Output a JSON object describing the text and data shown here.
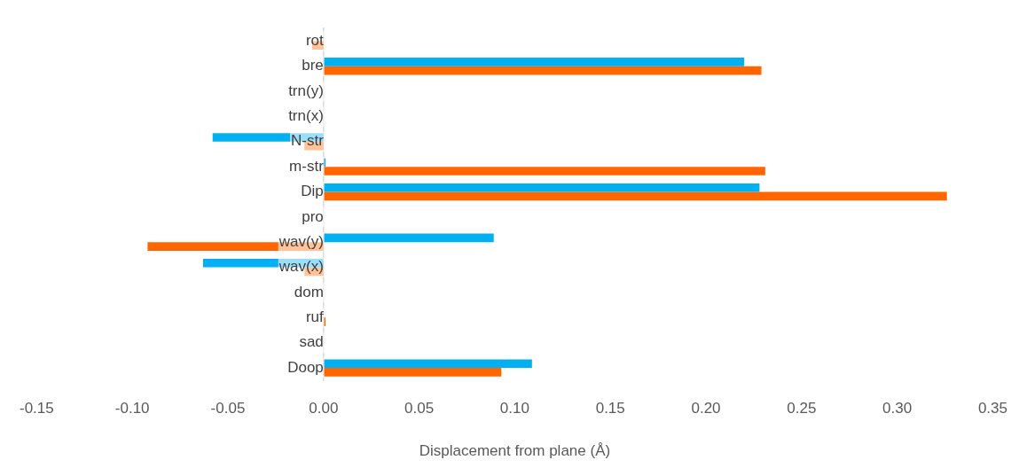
{
  "chart_data": {
    "type": "bar",
    "orientation": "horizontal",
    "xlabel": "Displacement from plane (Å)",
    "categories": [
      "rot",
      "bre",
      "trn(y)",
      "trn(x)",
      "N-str",
      "m-str",
      "Dip",
      "pro",
      "wav(y)",
      "wav(x)",
      "dom",
      "ruf",
      "sad",
      "Doop"
    ],
    "series": [
      {
        "color": "#00b0f0",
        "values": [
          0,
          0.22,
          0,
          0,
          -0.058,
          0.001,
          0.228,
          0,
          0.089,
          -0.063,
          0,
          0,
          0,
          0.109
        ]
      },
      {
        "color": "#ff6600",
        "values": [
          -0.006,
          0.229,
          0,
          0,
          -0.01,
          0.231,
          0.326,
          0,
          -0.092,
          -0.01,
          0,
          0.001,
          0,
          0.093
        ]
      }
    ],
    "xlim": [
      -0.15,
      0.35
    ],
    "xticks": [
      -0.15,
      {
        "value": -0.1,
        "label": "-0.10"
      },
      -0.05,
      {
        "value": 0,
        "label": "0.00"
      },
      0.05,
      {
        "value": 0.1,
        "label": "0.10"
      },
      0.15,
      {
        "value": 0.2,
        "label": "0.20"
      },
      0.25,
      {
        "value": 0.3,
        "label": "0.30"
      },
      0.35
    ],
    "grid": false,
    "legend": false
  }
}
